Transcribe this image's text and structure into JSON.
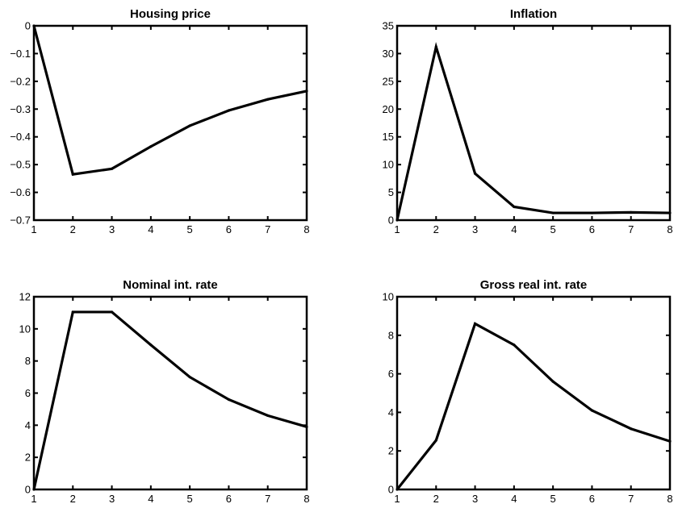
{
  "chart_data": [
    {
      "type": "line",
      "title": "Housing price",
      "xlabel": "",
      "ylabel": "",
      "x": [
        1,
        2,
        3,
        4,
        5,
        6,
        7,
        8
      ],
      "xlim": [
        1,
        8
      ],
      "ylim": [
        -0.7,
        0
      ],
      "xticks": [
        1,
        2,
        3,
        4,
        5,
        6,
        7,
        8
      ],
      "yticks": [
        0,
        -0.1,
        -0.2,
        -0.3,
        -0.4,
        -0.5,
        -0.6,
        -0.7
      ],
      "ytick_labels": [
        "0",
        "−0.1",
        "−0.2",
        "−0.3",
        "−0.4",
        "−0.5",
        "−0.6",
        "−0.7"
      ],
      "grid": false,
      "series": [
        {
          "values": [
            0,
            -0.535,
            -0.515,
            -0.435,
            -0.36,
            -0.305,
            -0.265,
            -0.235
          ]
        }
      ]
    },
    {
      "type": "line",
      "title": "Inflation",
      "xlabel": "",
      "ylabel": "",
      "x": [
        1,
        2,
        3,
        4,
        5,
        6,
        7,
        8
      ],
      "xlim": [
        1,
        8
      ],
      "ylim": [
        0,
        35
      ],
      "xticks": [
        1,
        2,
        3,
        4,
        5,
        6,
        7,
        8
      ],
      "yticks": [
        0,
        5,
        10,
        15,
        20,
        25,
        30,
        35
      ],
      "ytick_labels": [
        "0",
        "5",
        "10",
        "15",
        "20",
        "25",
        "30",
        "35"
      ],
      "grid": false,
      "series": [
        {
          "values": [
            0,
            31.2,
            8.4,
            2.4,
            1.3,
            1.3,
            1.4,
            1.3
          ]
        }
      ]
    },
    {
      "type": "line",
      "title": "Nominal int. rate",
      "xlabel": "",
      "ylabel": "",
      "x": [
        1,
        2,
        3,
        4,
        5,
        6,
        7,
        8
      ],
      "xlim": [
        1,
        8
      ],
      "ylim": [
        0,
        12
      ],
      "xticks": [
        1,
        2,
        3,
        4,
        5,
        6,
        7,
        8
      ],
      "yticks": [
        0,
        2,
        4,
        6,
        8,
        10,
        12
      ],
      "ytick_labels": [
        "0",
        "2",
        "4",
        "6",
        "8",
        "10",
        "12"
      ],
      "grid": false,
      "series": [
        {
          "values": [
            0,
            11.05,
            11.05,
            9.0,
            7.0,
            5.6,
            4.6,
            3.9
          ]
        }
      ]
    },
    {
      "type": "line",
      "title": "Gross real int. rate",
      "xlabel": "",
      "ylabel": "",
      "x": [
        1,
        2,
        3,
        4,
        5,
        6,
        7,
        8
      ],
      "xlim": [
        1,
        8
      ],
      "ylim": [
        0,
        10
      ],
      "xticks": [
        1,
        2,
        3,
        4,
        5,
        6,
        7,
        8
      ],
      "yticks": [
        0,
        2,
        4,
        6,
        8,
        10
      ],
      "ytick_labels": [
        "0",
        "2",
        "4",
        "6",
        "8",
        "10"
      ],
      "grid": false,
      "series": [
        {
          "values": [
            0,
            2.55,
            8.6,
            7.5,
            5.6,
            4.1,
            3.15,
            2.5
          ]
        }
      ]
    }
  ]
}
